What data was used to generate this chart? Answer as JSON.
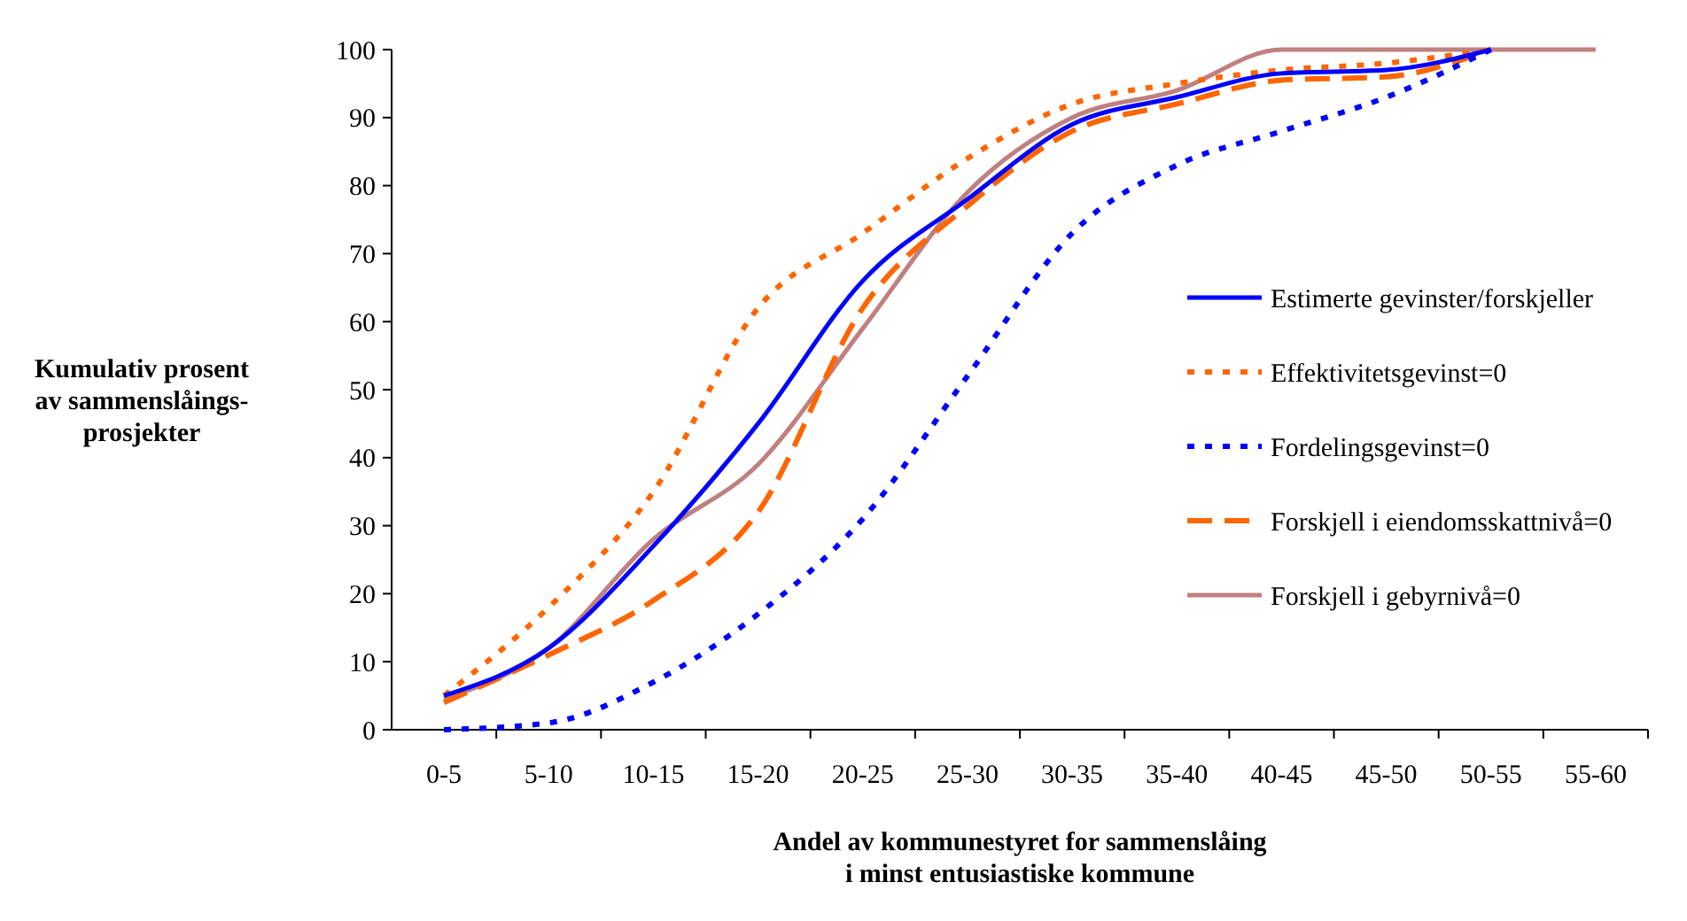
{
  "chart_data": {
    "type": "line",
    "xlabel": "Andel av kommunestyret for sammenslåing\ni minst entusiastiske kommune",
    "ylabel": "Kumulativ prosent\nav sammenslåings-\nprosjekter",
    "categories": [
      "0-5",
      "5-10",
      "10-15",
      "15-20",
      "20-25",
      "25-30",
      "30-35",
      "35-40",
      "40-45",
      "45-50",
      "50-55",
      "55-60"
    ],
    "ylim": [
      0,
      100
    ],
    "yticks": [
      0,
      10,
      20,
      30,
      40,
      50,
      60,
      70,
      80,
      90,
      100
    ],
    "grid": false,
    "legend": "right",
    "marker": "none",
    "series": [
      {
        "name": "Estimerte gevinster/forskjeller",
        "color": "#0000ff",
        "line_style": "solid",
        "values": [
          5,
          12,
          27,
          45,
          66,
          78,
          89,
          93,
          96.5,
          97,
          100,
          null
        ]
      },
      {
        "name": "Effektivitetsgevinst=0",
        "color": "#ff6600",
        "line_style": "dotted",
        "values": [
          5,
          18,
          35,
          62,
          73,
          84,
          92,
          95,
          97,
          98,
          100,
          null
        ]
      },
      {
        "name": "Fordelingsgevinst=0",
        "color": "#0000ff",
        "line_style": "dotted",
        "values": [
          0,
          1,
          7,
          17,
          31,
          52,
          73,
          83,
          88,
          93,
          100,
          null
        ]
      },
      {
        "name": "Forskjell i eiendomsskattnivå=0",
        "color": "#ff6600",
        "line_style": "dashed",
        "values": [
          4,
          11,
          19,
          32,
          62,
          77,
          88,
          92,
          95.5,
          96,
          100,
          null
        ]
      },
      {
        "name": "Forskjell i gebyrnivå=0",
        "color": "#bf8080",
        "line_style": "solid",
        "values": [
          4.5,
          12,
          28,
          39,
          59,
          79,
          90,
          94,
          100,
          100,
          100,
          100
        ]
      }
    ]
  }
}
